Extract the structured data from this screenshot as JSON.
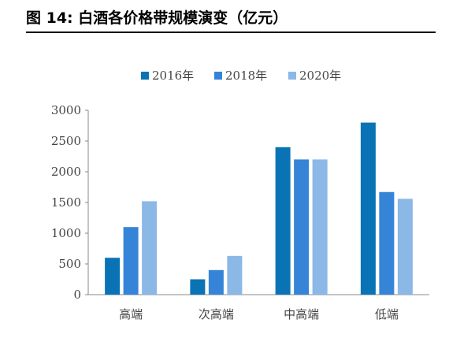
{
  "figure": {
    "title": "图  14:  白酒各价格带规模演变（亿元）"
  },
  "chart_data": {
    "type": "bar",
    "categories": [
      "高端",
      "次高端",
      "中高端",
      "低端"
    ],
    "series": [
      {
        "name": "2016年",
        "values": [
          600,
          250,
          2400,
          2800
        ],
        "color": "#0a73b5"
      },
      {
        "name": "2018年",
        "values": [
          1100,
          400,
          2200,
          1670
        ],
        "color": "#3584d8"
      },
      {
        "name": "2020年",
        "values": [
          1520,
          630,
          2200,
          1560
        ],
        "color": "#8bb8e6"
      }
    ],
    "yticks": [
      "0",
      "500",
      "1000",
      "1500",
      "2000",
      "2500",
      "3000"
    ],
    "ylim": [
      0,
      3000
    ],
    "grid": false,
    "legend_position": "top-center"
  }
}
